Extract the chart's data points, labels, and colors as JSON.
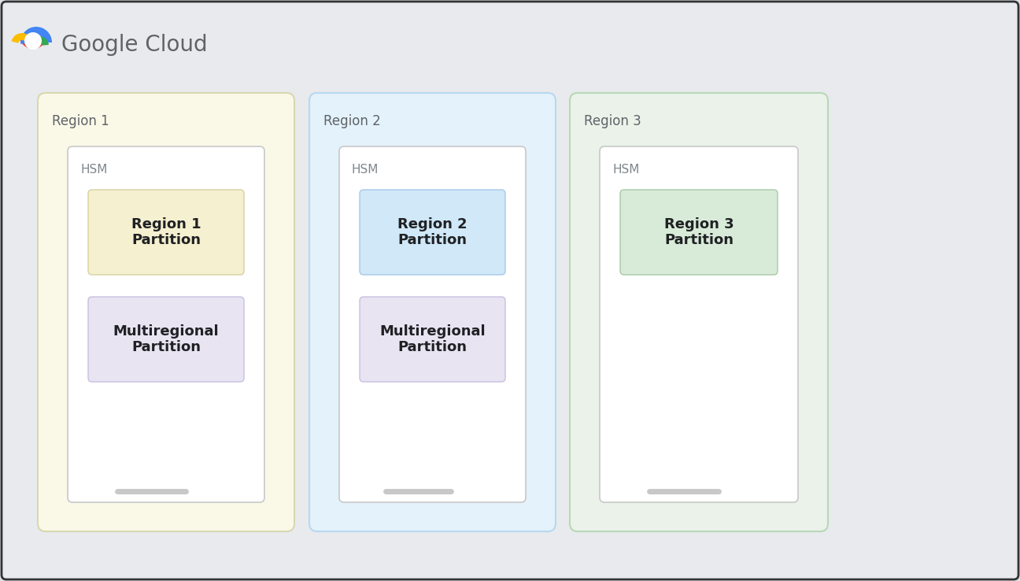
{
  "bg_outer": "#dde1e7",
  "bg_inner": "#e8eaed",
  "frame_color": "#2d2d2d",
  "title_text": "Google Cloud",
  "title_fontsize": 20,
  "title_color": "#5f6368",
  "regions": [
    {
      "label": "Region 1",
      "bg_color": "#faf9e8",
      "border_color": "#d8d8b0",
      "partition_label": "Region 1\nPartition",
      "partition_color": "#f5f0d0",
      "partition_border": "#d8d0a0",
      "multi_label": "Multiregional\nPartition",
      "multi_color": "#e8e4f2",
      "multi_border": "#c8c0e0",
      "has_multi": true
    },
    {
      "label": "Region 2",
      "bg_color": "#e4f2fb",
      "border_color": "#b8d8f0",
      "partition_label": "Region 2\nPartition",
      "partition_color": "#d0e8f8",
      "partition_border": "#a8c8e8",
      "multi_label": "Multiregional\nPartition",
      "multi_color": "#e8e4f2",
      "multi_border": "#c8c0e0",
      "has_multi": true
    },
    {
      "label": "Region 3",
      "bg_color": "#eaf2ea",
      "border_color": "#b8d8b8",
      "partition_label": "Region 3\nPartition",
      "partition_color": "#d8ebd8",
      "partition_border": "#a8c8a8",
      "multi_label": null,
      "multi_color": null,
      "multi_border": null,
      "has_multi": false
    }
  ],
  "region_label_fontsize": 12,
  "region_label_color": "#5f6368",
  "hsm_label": "HSM",
  "hsm_label_fontsize": 11,
  "hsm_label_color": "#80868b",
  "hsm_bg": "#ffffff",
  "hsm_border": "#c8c8c8",
  "partition_fontsize": 13,
  "partition_text_color": "#202124",
  "logo_blue": "#4285F4",
  "logo_red": "#EA4335",
  "logo_yellow": "#FBBC04",
  "logo_green": "#34A853",
  "scrollbar_color": "#c8c8c8"
}
